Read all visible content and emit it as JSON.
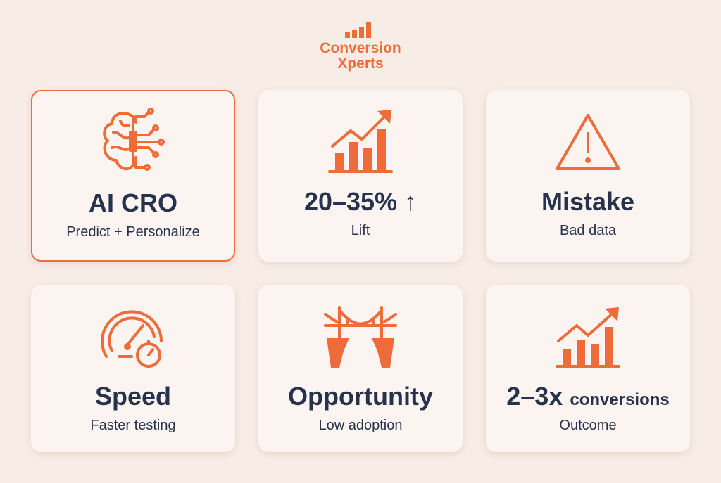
{
  "logo": {
    "line1": "Conversion",
    "line2": "Xperts"
  },
  "cards": [
    {
      "title": "AI CRO",
      "subtitle": "Predict + Personalize"
    },
    {
      "title": "20–35% ↑",
      "subtitle": "Lift"
    },
    {
      "title": "Mistake",
      "subtitle": "Bad data"
    },
    {
      "title": "Speed",
      "subtitle": "Faster testing"
    },
    {
      "title": "Opportunity",
      "subtitle": "Low adoption"
    },
    {
      "title": "2–3x",
      "title_suffix": "conversions",
      "subtitle": "Outcome"
    }
  ]
}
